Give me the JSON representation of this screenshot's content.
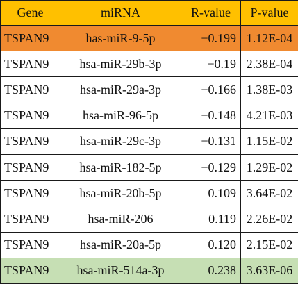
{
  "headers": [
    "Gene",
    "miRNA",
    "R-value",
    "P-value"
  ],
  "rows": [
    {
      "gene": "TSPAN9",
      "mirna": "has-miR-9-5p",
      "r": "−0.199",
      "p": "1.12E-04"
    },
    {
      "gene": "TSPAN9",
      "mirna": "hsa-miR-29b-3p",
      "r": "−0.19",
      "p": "2.38E-04"
    },
    {
      "gene": "TSPAN9",
      "mirna": "hsa-miR-29a-3p",
      "r": "−0.166",
      "p": "1.38E-03"
    },
    {
      "gene": "TSPAN9",
      "mirna": "hsa-miR-96-5p",
      "r": "−0.148",
      "p": "4.21E-03"
    },
    {
      "gene": "TSPAN9",
      "mirna": "hsa-miR-29c-3p",
      "r": "−0.131",
      "p": "1.15E-02"
    },
    {
      "gene": "TSPAN9",
      "mirna": "hsa-miR-182-5p",
      "r": "−0.129",
      "p": "1.29E-02"
    },
    {
      "gene": "TSPAN9",
      "mirna": "hsa-miR-20b-5p",
      "r": "0.109",
      "p": "3.64E-02"
    },
    {
      "gene": "TSPAN9",
      "mirna": "hsa-miR-206",
      "r": "0.119",
      "p": "2.26E-02"
    },
    {
      "gene": "TSPAN9",
      "mirna": "hsa-miR-20a-5p",
      "r": "0.120",
      "p": "2.15E-02"
    },
    {
      "gene": "TSPAN9",
      "mirna": "hsa-miR-514a-3p",
      "r": "0.238",
      "p": "3.63E-06"
    }
  ],
  "colors": {
    "header_bg": "#ffc000",
    "highlight_top_bg": "#f08a30",
    "highlight_bottom_bg": "#c6dfb4"
  }
}
